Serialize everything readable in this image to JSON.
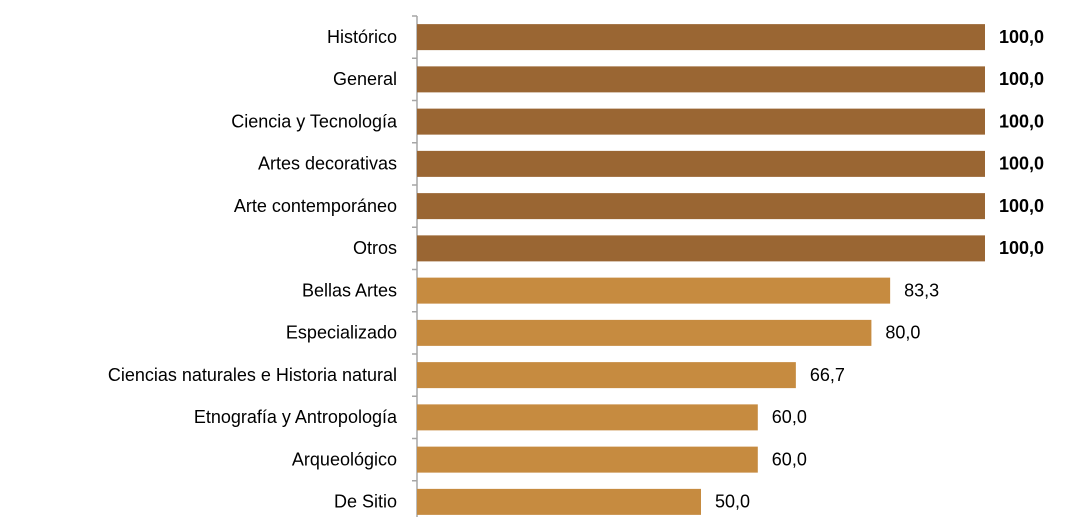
{
  "chart_data": {
    "type": "hbar",
    "categories": [
      "Histórico",
      "General",
      "Ciencia y Tecnología",
      "Artes decorativas",
      "Arte contemporáneo",
      "Otros",
      "Bellas Artes",
      "Especializado",
      "Ciencias naturales e Historia natural",
      "Etnografía y Antropología",
      "Arqueológico",
      "De Sitio"
    ],
    "values": [
      100,
      100,
      100,
      100,
      100,
      100,
      83.3,
      80,
      66.7,
      60,
      60,
      50
    ],
    "value_labels": [
      "100,0",
      "100,0",
      "100,0",
      "100,0",
      "100,0",
      "100,0",
      "83,3",
      "80,0",
      "66,7",
      "60,0",
      "60,0",
      "50,0"
    ],
    "colors": [
      "#9a6633",
      "#9a6633",
      "#9a6633",
      "#9a6633",
      "#9a6633",
      "#9a6633",
      "#c68b40",
      "#c68b40",
      "#c68b40",
      "#c68b40",
      "#c68b40",
      "#c68b40"
    ],
    "bold_labels": [
      true,
      true,
      true,
      true,
      true,
      true,
      false,
      false,
      false,
      false,
      false,
      false
    ],
    "xlim": [
      0,
      100
    ]
  }
}
